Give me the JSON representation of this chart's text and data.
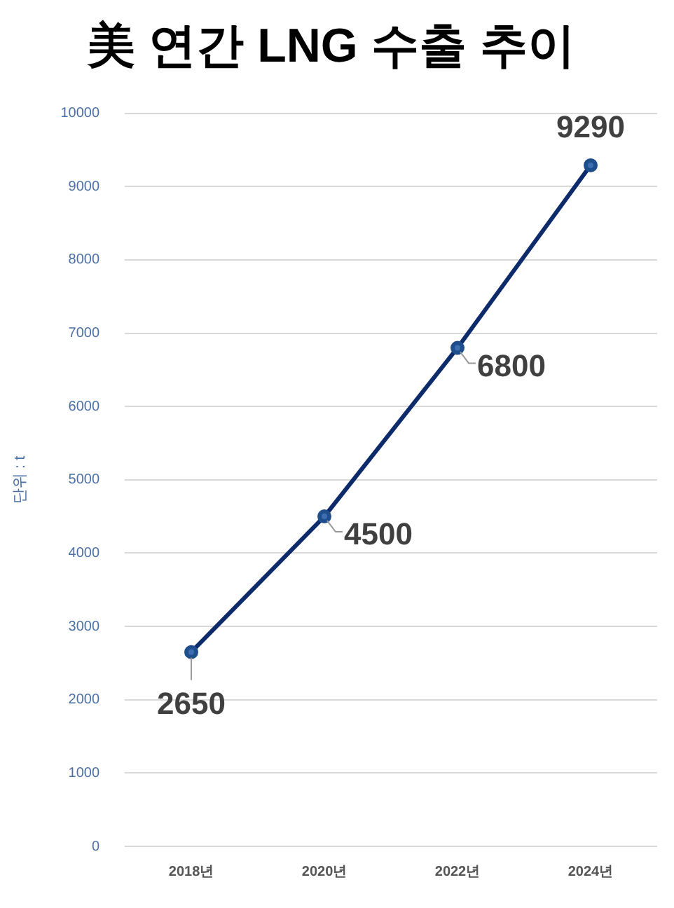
{
  "chart_data": {
    "type": "line",
    "title": "美 연간 LNG 수출 추이",
    "ylabel": "단위 : t",
    "categories": [
      "2018년",
      "2020년",
      "2022년",
      "2024년"
    ],
    "series": [
      {
        "color": "#0d2a6b",
        "values": [
          2650,
          4500,
          6800,
          9290
        ]
      }
    ],
    "ylim": [
      0,
      10000
    ],
    "yticks": [
      0,
      1000,
      2000,
      3000,
      4000,
      5000,
      6000,
      7000,
      8000,
      9000,
      10000
    ],
    "grid": "y",
    "legend": false,
    "marker": "circle",
    "line_style": "solid",
    "data_labels": true
  }
}
